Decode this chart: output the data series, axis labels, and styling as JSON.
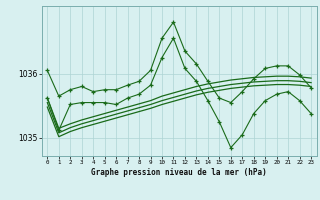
{
  "xlabel": "Graphe pression niveau de la mer (hPa)",
  "hours": [
    0,
    1,
    2,
    3,
    4,
    5,
    6,
    7,
    8,
    9,
    10,
    11,
    12,
    13,
    14,
    15,
    16,
    17,
    18,
    19,
    20,
    21,
    22,
    23
  ],
  "line1": [
    1036.05,
    1035.65,
    1035.75,
    1035.8,
    1035.72,
    1035.75,
    1035.75,
    1035.82,
    1035.88,
    1036.05,
    1036.55,
    1036.8,
    1036.35,
    1036.15,
    1035.88,
    1035.62,
    1035.55,
    1035.72,
    1035.92,
    1036.08,
    1036.12,
    1036.12,
    1035.98,
    1035.78
  ],
  "line2": [
    1035.62,
    1035.12,
    1035.52,
    1035.55,
    1035.55,
    1035.55,
    1035.52,
    1035.62,
    1035.68,
    1035.82,
    1036.25,
    1036.55,
    1036.08,
    1035.88,
    1035.58,
    1035.25,
    1034.85,
    1035.05,
    1035.38,
    1035.58,
    1035.68,
    1035.72,
    1035.58,
    1035.38
  ],
  "smooth1": [
    1035.62,
    1035.15,
    1035.22,
    1035.28,
    1035.33,
    1035.38,
    1035.43,
    1035.48,
    1035.53,
    1035.58,
    1035.65,
    1035.7,
    1035.75,
    1035.8,
    1035.84,
    1035.87,
    1035.9,
    1035.92,
    1035.94,
    1035.95,
    1035.96,
    1035.96,
    1035.95,
    1035.93
  ],
  "smooth2": [
    1035.55,
    1035.08,
    1035.16,
    1035.22,
    1035.27,
    1035.32,
    1035.37,
    1035.42,
    1035.47,
    1035.52,
    1035.58,
    1035.63,
    1035.68,
    1035.73,
    1035.77,
    1035.8,
    1035.83,
    1035.85,
    1035.87,
    1035.88,
    1035.89,
    1035.89,
    1035.88,
    1035.86
  ],
  "smooth3": [
    1035.48,
    1035.02,
    1035.1,
    1035.16,
    1035.21,
    1035.26,
    1035.31,
    1035.36,
    1035.41,
    1035.46,
    1035.52,
    1035.57,
    1035.62,
    1035.67,
    1035.71,
    1035.74,
    1035.77,
    1035.79,
    1035.81,
    1035.82,
    1035.83,
    1035.83,
    1035.82,
    1035.8
  ],
  "ylim": [
    1034.72,
    1037.05
  ],
  "yticks": [
    1035.0,
    1036.0
  ],
  "line_color": "#1a6b1a",
  "bg_color": "#d8f0f0",
  "grid_color": "#aed4d4"
}
